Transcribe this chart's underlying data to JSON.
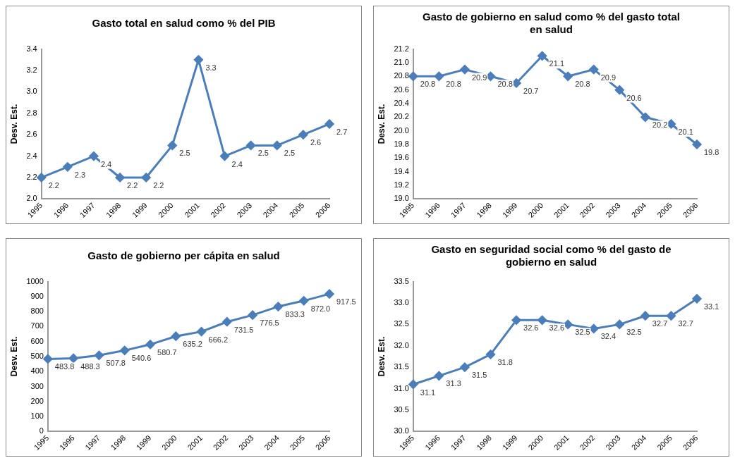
{
  "chart_data": [
    {
      "type": "line",
      "title": "Gasto total en salud como % del PIB",
      "ylabel": "Desv. Est.",
      "categories": [
        "1995",
        "1996",
        "1997",
        "1998",
        "1999",
        "2000",
        "2001",
        "2002",
        "2003",
        "2004",
        "2005",
        "2006"
      ],
      "series": [
        {
          "color": "#4a7ebb",
          "values": [
            2.2,
            2.3,
            2.4,
            2.2,
            2.2,
            2.5,
            3.3,
            2.4,
            2.5,
            2.5,
            2.6,
            2.7
          ],
          "value_labels": [
            "2.2",
            "2.3",
            "2.4",
            "2.2",
            "2.2",
            "2.5",
            "3.3",
            "2.4",
            "2.5",
            "2.5",
            "2.6",
            "2.7"
          ]
        }
      ],
      "ylim": [
        2,
        3.4
      ],
      "yticks": [
        {
          "value": 2,
          "label": "2.0"
        },
        {
          "value": 2.2,
          "label": "2.2"
        },
        {
          "value": 2.4,
          "label": "2.4"
        },
        {
          "value": 2.6,
          "label": "2.6"
        },
        {
          "value": 2.8,
          "label": "2.8"
        },
        {
          "value": 3,
          "label": "3.0"
        },
        {
          "value": 3.2,
          "label": "3.2"
        },
        {
          "value": 3.4,
          "label": "3.4"
        }
      ],
      "grid": false,
      "legend": false,
      "marker": "diamond",
      "line_style": "solid"
    },
    {
      "type": "line",
      "title": "Gasto de gobierno en salud como % del gasto total en salud",
      "ylabel": "Desv. Est.",
      "categories": [
        "1995",
        "1996",
        "1997",
        "1998",
        "1999",
        "2000",
        "2001",
        "2002",
        "2003",
        "2004",
        "2005",
        "2006"
      ],
      "series": [
        {
          "color": "#4a7ebb",
          "values": [
            20.8,
            20.8,
            20.9,
            20.8,
            20.7,
            21.1,
            20.8,
            20.9,
            20.6,
            20.2,
            20.1,
            19.8
          ],
          "value_labels": [
            "20.8",
            "20.8",
            "20.9",
            "20.8",
            "20.7",
            "21.1",
            "20.8",
            "20.9",
            "20.6",
            "20.2",
            "20.1",
            "19.8"
          ]
        }
      ],
      "ylim": [
        19,
        21.2
      ],
      "yticks": [
        {
          "value": 19,
          "label": "19.0"
        },
        {
          "value": 19.2,
          "label": "19.2"
        },
        {
          "value": 19.4,
          "label": "19.4"
        },
        {
          "value": 19.6,
          "label": "19.6"
        },
        {
          "value": 19.8,
          "label": "19.8"
        },
        {
          "value": 20,
          "label": "20.0"
        },
        {
          "value": 20.2,
          "label": "20.2"
        },
        {
          "value": 20.4,
          "label": "20.4"
        },
        {
          "value": 20.6,
          "label": "20.6"
        },
        {
          "value": 20.8,
          "label": "20.8"
        },
        {
          "value": 21,
          "label": "21.0"
        },
        {
          "value": 21.2,
          "label": "21.2"
        }
      ],
      "grid": false,
      "legend": false,
      "marker": "diamond",
      "line_style": "solid"
    },
    {
      "type": "line",
      "title": "Gasto de gobierno per cápita en salud",
      "ylabel": "Desv. Est.",
      "categories": [
        "1995",
        "1996",
        "1997",
        "1998",
        "1999",
        "2000",
        "2001",
        "2002",
        "2003",
        "2004",
        "2005",
        "2006"
      ],
      "series": [
        {
          "color": "#4a7ebb",
          "values": [
            483.8,
            488.3,
            507.8,
            540.6,
            580.7,
            635.2,
            666.2,
            731.5,
            776.5,
            833.3,
            872.0,
            917.5
          ],
          "value_labels": [
            "483.8",
            "488.3",
            "507.8",
            "540.6",
            "580.7",
            "635.2",
            "666.2",
            "731.5",
            "776.5",
            "833.3",
            "872.0",
            "917.5"
          ]
        }
      ],
      "ylim": [
        0,
        1000
      ],
      "yticks": [
        0,
        100,
        200,
        300,
        400,
        500,
        600,
        700,
        800,
        900,
        1000
      ],
      "grid": false,
      "legend": false,
      "marker": "diamond",
      "line_style": "solid"
    },
    {
      "type": "line",
      "title": "Gasto en seguridad social como % del gasto de gobierno en salud",
      "ylabel": "Desv. Est.",
      "categories": [
        "1995",
        "1996",
        "1997",
        "1998",
        "1999",
        "2000",
        "2001",
        "2002",
        "2003",
        "2004",
        "2005",
        "2006"
      ],
      "series": [
        {
          "color": "#4a7ebb",
          "values": [
            31.1,
            31.3,
            31.5,
            31.8,
            32.6,
            32.6,
            32.5,
            32.4,
            32.5,
            32.7,
            32.7,
            33.1
          ],
          "value_labels": [
            "31.1",
            "31.3",
            "31.5",
            "31.8",
            "32.6",
            "32.6",
            "32.5",
            "32.4",
            "32.5",
            "32.7",
            "32.7",
            "33.1"
          ]
        }
      ],
      "ylim": [
        30,
        33.5
      ],
      "yticks": [
        {
          "value": 30,
          "label": "30.0"
        },
        {
          "value": 30.5,
          "label": "30.5"
        },
        {
          "value": 31,
          "label": "31.0"
        },
        {
          "value": 31.5,
          "label": "31.5"
        },
        {
          "value": 32,
          "label": "32.0"
        },
        {
          "value": 32.5,
          "label": "32.5"
        },
        {
          "value": 33,
          "label": "33.0"
        },
        {
          "value": 33.5,
          "label": "33.5"
        }
      ],
      "grid": false,
      "legend": false,
      "marker": "diamond",
      "line_style": "solid"
    }
  ]
}
